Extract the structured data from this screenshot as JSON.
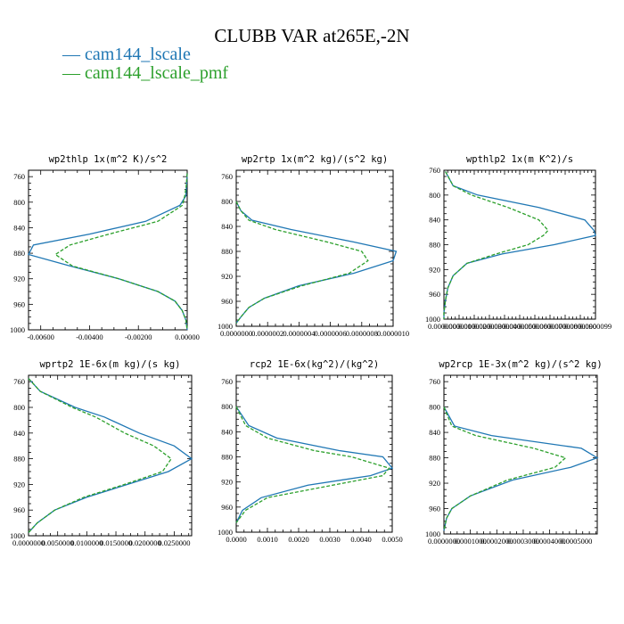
{
  "title": "CLUBB VAR at265E,-2N",
  "legend": [
    {
      "label": "cam144_lscale",
      "color": "#1f77b4"
    },
    {
      "label": "cam144_lscale_pmf",
      "color": "#2ca02c"
    }
  ],
  "chart_data": [
    {
      "type": "line",
      "title": "wp2thlp  1x(m^2 K)/s^2",
      "ylim": [
        1000,
        750
      ],
      "xlim": [
        -0.0065,
        0.0
      ],
      "yticks": [
        760,
        800,
        840,
        880,
        920,
        960,
        1000
      ],
      "xticks": [
        -0.006,
        -0.004,
        -0.002,
        0.0
      ],
      "xtick_labels": [
        "-0.00600",
        "-0.00400",
        "-0.00200",
        "0.00000"
      ],
      "series": [
        {
          "name": "cam144_lscale",
          "y": [
            755,
            775,
            790,
            805,
            830,
            850,
            867,
            882,
            900,
            920,
            940,
            955,
            970,
            985,
            1000
          ],
          "x": [
            0.0,
            -3e-05,
            -5e-05,
            -0.0003,
            -0.0017,
            -0.004,
            -0.0063,
            -0.0065,
            -0.0048,
            -0.0028,
            -0.0012,
            -0.0005,
            -0.0002,
            -5e-05,
            0.0
          ]
        },
        {
          "name": "cam144_lscale_pmf",
          "y": [
            755,
            775,
            790,
            805,
            830,
            850,
            867,
            882,
            900,
            920,
            940,
            955,
            970,
            985,
            1000
          ],
          "x": [
            0.0,
            -4e-05,
            -0.0001,
            -0.0002,
            -0.0012,
            -0.0032,
            -0.0048,
            -0.0054,
            -0.0047,
            -0.0028,
            -0.0012,
            -0.0005,
            -0.0002,
            -5e-05,
            0.0
          ]
        }
      ]
    },
    {
      "type": "line",
      "title": "wp2rtp  1x(m^2 kg)/(s^2 kg)",
      "ylim": [
        1000,
        750
      ],
      "xlim": [
        0.0,
        1e-06
      ],
      "yticks": [
        760,
        800,
        840,
        880,
        920,
        960,
        1000
      ],
      "xticks": [
        0.0,
        2e-07,
        4e-07,
        6e-07,
        8e-07,
        1e-06
      ],
      "xtick_labels": [
        "0.0000000",
        "0.0000002",
        "0.0000004",
        "0.0000006",
        "0.0000008",
        "0.0000010"
      ],
      "series": [
        {
          "name": "cam144_lscale",
          "y": [
            800,
            815,
            830,
            845,
            865,
            880,
            895,
            915,
            935,
            955,
            970,
            985,
            995
          ],
          "x": [
            0.0,
            3e-08,
            1e-07,
            3.5e-07,
            7.5e-07,
            1.02e-06,
            1e-06,
            7.5e-07,
            4e-07,
            1.8e-07,
            8e-08,
            3e-08,
            0.0
          ]
        },
        {
          "name": "cam144_lscale_pmf",
          "y": [
            800,
            815,
            830,
            845,
            865,
            880,
            895,
            915,
            935,
            955,
            970,
            985,
            995
          ],
          "x": [
            0.0,
            3e-08,
            8e-08,
            2.5e-07,
            5.8e-07,
            8e-07,
            8.4e-07,
            7.2e-07,
            4.2e-07,
            1.8e-07,
            8e-08,
            3e-08,
            0.0
          ]
        }
      ]
    },
    {
      "type": "line",
      "title": "wpthlp2  1x(m K^2)/s",
      "ylim": [
        1000,
        760
      ],
      "xlim": [
        0.0,
        9.9e-06
      ],
      "yticks": [
        760,
        800,
        840,
        880,
        920,
        960,
        1000
      ],
      "xticks": [
        0.0,
        9.9e-07,
        1.98e-06,
        2.97e-06,
        3.96e-06,
        4.95e-06,
        5.94e-06,
        6.93e-06,
        7.92e-06,
        8.91e-06,
        9.9e-06
      ],
      "xtick_labels": [
        "0.0000000",
        "0.0000010",
        "0.0000020",
        "0.0000030",
        "0.0000040",
        "0.0000050",
        "0.0000060",
        "0.0000070",
        "0.0000080",
        "0.0000090",
        "0.0000099"
      ],
      "series": [
        {
          "name": "cam144_lscale",
          "y": [
            762,
            785,
            800,
            820,
            840,
            857,
            865,
            880,
            895,
            910,
            930,
            950,
            970,
            990,
            1000
          ],
          "x": [
            1e-07,
            6e-07,
            2.2e-06,
            6.2e-06,
            9.2e-06,
            9.8e-06,
            9.9e-06,
            7.2e-06,
            3.8e-06,
            1.5e-06,
            6e-07,
            2.5e-07,
            1e-07,
            0.0,
            0.0
          ]
        },
        {
          "name": "cam144_lscale_pmf",
          "y": [
            762,
            785,
            800,
            820,
            840,
            857,
            865,
            880,
            895,
            910,
            930,
            950,
            970,
            990,
            1000
          ],
          "x": [
            1e-07,
            6e-07,
            1.8e-06,
            4.2e-06,
            6.2e-06,
            6.8e-06,
            6.5e-06,
            5.5e-06,
            3.4e-06,
            1.5e-06,
            6e-07,
            2.5e-07,
            1e-07,
            0.0,
            0.0
          ]
        }
      ]
    },
    {
      "type": "line",
      "title": "wprtp2  1E-6x(m kg)/(s kg)",
      "ylim": [
        1000,
        750
      ],
      "xlim": [
        0.0,
        0.028
      ],
      "yticks": [
        760,
        800,
        840,
        880,
        920,
        960,
        1000
      ],
      "xticks": [
        0.0,
        0.005,
        0.01,
        0.015,
        0.02,
        0.025
      ],
      "xtick_labels": [
        "0.0000000",
        "0.0050000",
        "0.0100000",
        "0.0150000",
        "0.0200000",
        "0.0250000"
      ],
      "series": [
        {
          "name": "cam144_lscale",
          "y": [
            755,
            775,
            800,
            815,
            840,
            860,
            880,
            900,
            920,
            940,
            960,
            980,
            995
          ],
          "x": [
            0.0,
            0.002,
            0.008,
            0.013,
            0.019,
            0.025,
            0.028,
            0.024,
            0.017,
            0.01,
            0.0045,
            0.0015,
            0.0
          ]
        },
        {
          "name": "cam144_lscale_pmf",
          "y": [
            755,
            775,
            800,
            815,
            840,
            860,
            880,
            900,
            920,
            940,
            960,
            980,
            995
          ],
          "x": [
            0.0,
            0.002,
            0.0075,
            0.0115,
            0.0165,
            0.0215,
            0.0245,
            0.023,
            0.0165,
            0.0095,
            0.0045,
            0.0015,
            0.0
          ]
        }
      ]
    },
    {
      "type": "line",
      "title": "rcp2  1E-6x(kg^2)/(kg^2)",
      "ylim": [
        1000,
        750
      ],
      "xlim": [
        0.0,
        0.005
      ],
      "yticks": [
        760,
        800,
        840,
        880,
        920,
        960,
        1000
      ],
      "xticks": [
        0.0,
        0.001,
        0.002,
        0.003,
        0.004,
        0.005
      ],
      "xtick_labels": [
        "0.0000",
        "0.0010",
        "0.0020",
        "0.0030",
        "0.0040",
        "0.0050"
      ],
      "series": [
        {
          "name": "cam144_lscale",
          "y": [
            800,
            830,
            850,
            870,
            880,
            898,
            910,
            925,
            945,
            965,
            985
          ],
          "x": [
            0.0,
            0.0004,
            0.0013,
            0.0033,
            0.0047,
            0.005,
            0.0043,
            0.0023,
            0.0008,
            0.0002,
            0.0
          ]
        },
        {
          "name": "cam144_lscale_pmf",
          "y": [
            800,
            830,
            850,
            870,
            880,
            898,
            910,
            925,
            945,
            965,
            985
          ],
          "x": [
            0.0,
            0.0003,
            0.001,
            0.0025,
            0.0037,
            0.0049,
            0.0047,
            0.0031,
            0.001,
            0.0003,
            0.0
          ]
        }
      ]
    },
    {
      "type": "line",
      "title": "wp2rcp  1E-3x(m^2 kg)/(s^2 kg)",
      "ylim": [
        1000,
        750
      ],
      "xlim": [
        0.0,
        0.00058
      ],
      "yticks": [
        760,
        800,
        840,
        880,
        920,
        960,
        1000
      ],
      "xticks": [
        0.0,
        0.0001,
        0.0002,
        0.0003,
        0.0004,
        0.0005
      ],
      "xtick_labels": [
        "0.0000000",
        "0.0001000",
        "0.0002000",
        "0.0003000",
        "0.0004000",
        "0.0005000"
      ],
      "series": [
        {
          "name": "cam144_lscale",
          "y": [
            800,
            830,
            845,
            865,
            880,
            895,
            915,
            940,
            960,
            975,
            995
          ],
          "x": [
            0.0,
            4e-05,
            0.00018,
            0.00052,
            0.00058,
            0.00048,
            0.00026,
            0.0001,
            3e-05,
            1e-05,
            0.0
          ]
        },
        {
          "name": "cam144_lscale_pmf",
          "y": [
            800,
            830,
            845,
            865,
            880,
            895,
            915,
            940,
            960,
            975,
            995
          ],
          "x": [
            0.0,
            3e-05,
            0.00012,
            0.00034,
            0.00046,
            0.00042,
            0.00024,
            0.0001,
            3e-05,
            1e-05,
            0.0
          ]
        }
      ]
    }
  ]
}
